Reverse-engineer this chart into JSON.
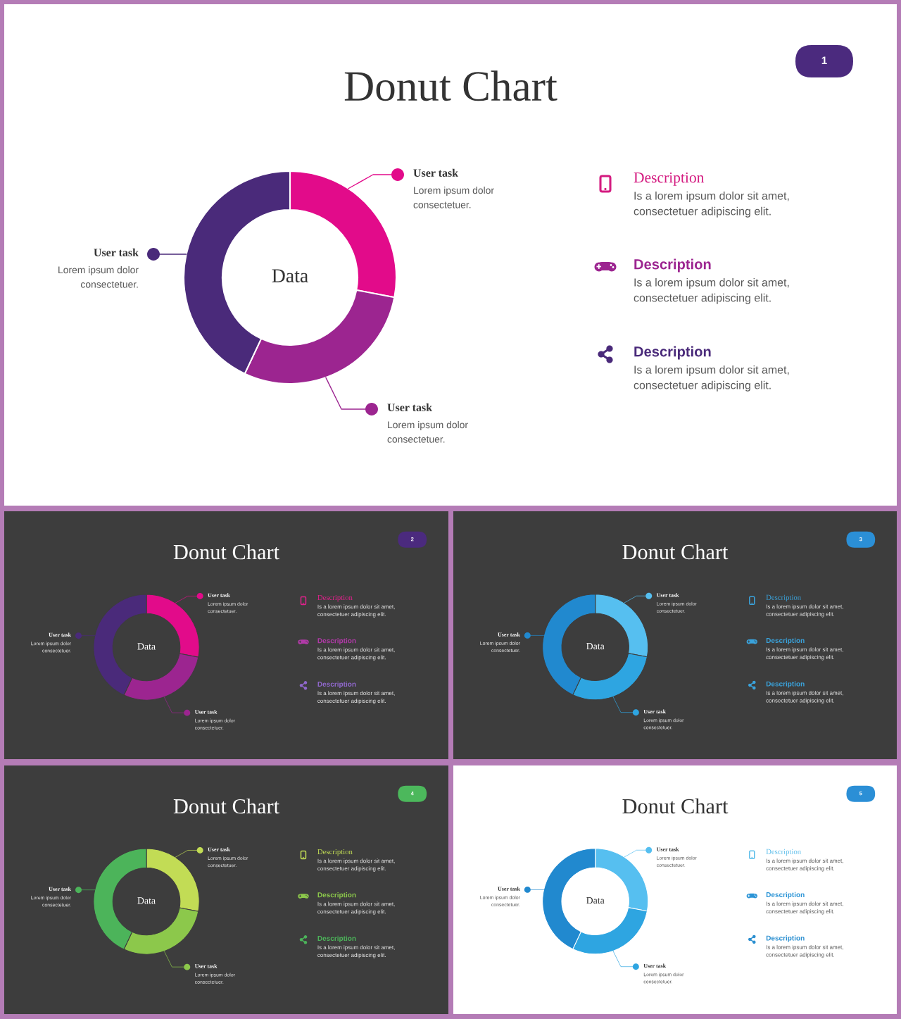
{
  "chart_data": [
    {
      "type": "donut",
      "title": "Donut Chart",
      "categories": [
        "User task",
        "User task",
        "User task"
      ],
      "values": [
        28,
        29,
        43
      ],
      "colors": [
        "#e20b8a",
        "#9c2590",
        "#4a2a7a"
      ],
      "annotations": [
        "Data",
        "Lorem ipsum dolor\nconsectetuer.",
        "Lorem ipsum dolor\nconsectetuer.",
        "Lorem ipsum dolor\nconsectetuer.",
        "1"
      ]
    },
    {
      "type": "other",
      "annotations": [
        "Description",
        "Is a lorem ipsum dolor sit amet,\nconsectetuer adipiscing elit.",
        "Description",
        "Is a lorem ipsum dolor sit amet,\nconsectetuer adipiscing elit.",
        "Description",
        "Is a lorem ipsum dolor sit amet,\nconsectetuer adipiscing elit."
      ],
      "colors": [
        "#d41b80",
        "#9c2590",
        "#4a2a7a"
      ]
    },
    {
      "type": "donut",
      "title": "Donut Chart",
      "categories": [
        "User task",
        "User task",
        "User task"
      ],
      "values": [
        28,
        29,
        43
      ],
      "colors": [
        "#e20b8a",
        "#9c2590",
        "#4a2a7a"
      ],
      "annotations": [
        "Data",
        "Lorem ipsum dolor\nconsectetuer.",
        "Lorem ipsum dolor\nconsectetuer.",
        "Lorem ipsum dolor\nconsectetuer.",
        "2"
      ]
    },
    {
      "type": "other",
      "annotations": [
        "Description",
        "Is a lorem ipsum dolor sit amet,\nconsectetuer adipiscing elit.",
        "Description",
        "Is a lorem ipsum dolor sit amet,\nconsectetuer adipiscing elit.",
        "Description",
        "Is a lorem ipsum dolor sit amet,\nconsectetuer adipiscing elit."
      ],
      "colors": [
        "#e0228c",
        "#b13aa8",
        "#9068cc"
      ]
    },
    {
      "type": "donut",
      "title": "Donut Chart",
      "categories": [
        "User task",
        "User task",
        "User task"
      ],
      "values": [
        28,
        29,
        43
      ],
      "colors": [
        "#56bff0",
        "#2ea5e1",
        "#2189cf"
      ],
      "annotations": [
        "Data",
        "Lorem ipsum dolor\nconsectetuer.",
        "Lorem ipsum dolor\nconsectetuer.",
        "Lorem ipsum dolor\nconsectetuer.",
        "3"
      ]
    },
    {
      "type": "other",
      "annotations": [
        "Description",
        "Is a lorem ipsum dolor sit amet,\nconsectetuer adipiscing elit.",
        "Description",
        "Is a lorem ipsum dolor sit amet,\nconsectetuer adipiscing elit.",
        "Description",
        "Is a lorem ipsum dolor sit amet,\nconsectetuer adipiscing elit."
      ],
      "colors": [
        "#3aa3dc",
        "#3aa3dc",
        "#3aa3dc"
      ]
    },
    {
      "type": "donut",
      "title": "Donut Chart",
      "categories": [
        "User task",
        "User task",
        "User task"
      ],
      "values": [
        28,
        29,
        43
      ],
      "colors": [
        "#c2dc55",
        "#8cc84b",
        "#4cb45a"
      ],
      "annotations": [
        "Data",
        "Lorem ipsum dolor\nconsectetuer.",
        "Lorem ipsum dolor\nconsectetuer.",
        "Lorem ipsum dolor\nconsectetuer.",
        "4"
      ]
    },
    {
      "type": "other",
      "annotations": [
        "Description",
        "Is a lorem ipsum dolor sit amet,\nconsectetuer adipiscing elit.",
        "Description",
        "Is a lorem ipsum dolor sit amet,\nconsectetuer adipiscing elit.",
        "Description",
        "Is a lorem ipsum dolor sit amet,\nconsectetuer adipiscing elit."
      ],
      "colors": [
        "#c2dc55",
        "#8cc84b",
        "#4cb45a"
      ]
    },
    {
      "type": "donut",
      "title": "Donut Chart",
      "categories": [
        "User task",
        "User task",
        "User task"
      ],
      "values": [
        28,
        29,
        43
      ],
      "colors": [
        "#56bff0",
        "#2ea5e1",
        "#2189cf"
      ],
      "annotations": [
        "Data",
        "Lorem ipsum dolor\nconsectetuer.",
        "Lorem ipsum dolor\nconsectetuer.",
        "Lorem ipsum dolor\nconsectetuer.",
        "5"
      ]
    },
    {
      "type": "other",
      "annotations": [
        "Description",
        "Is a lorem ipsum dolor sit amet,\nconsectetuer adipiscing elit.",
        "Description",
        "Is a lorem ipsum dolor sit amet,\nconsectetuer adipiscing elit.",
        "Description",
        "Is a lorem ipsum dolor sit amet,\nconsectetuer adipiscing elit."
      ],
      "colors": [
        "#5bbdea",
        "#2b94d6",
        "#2b8fd0"
      ]
    }
  ]
}
